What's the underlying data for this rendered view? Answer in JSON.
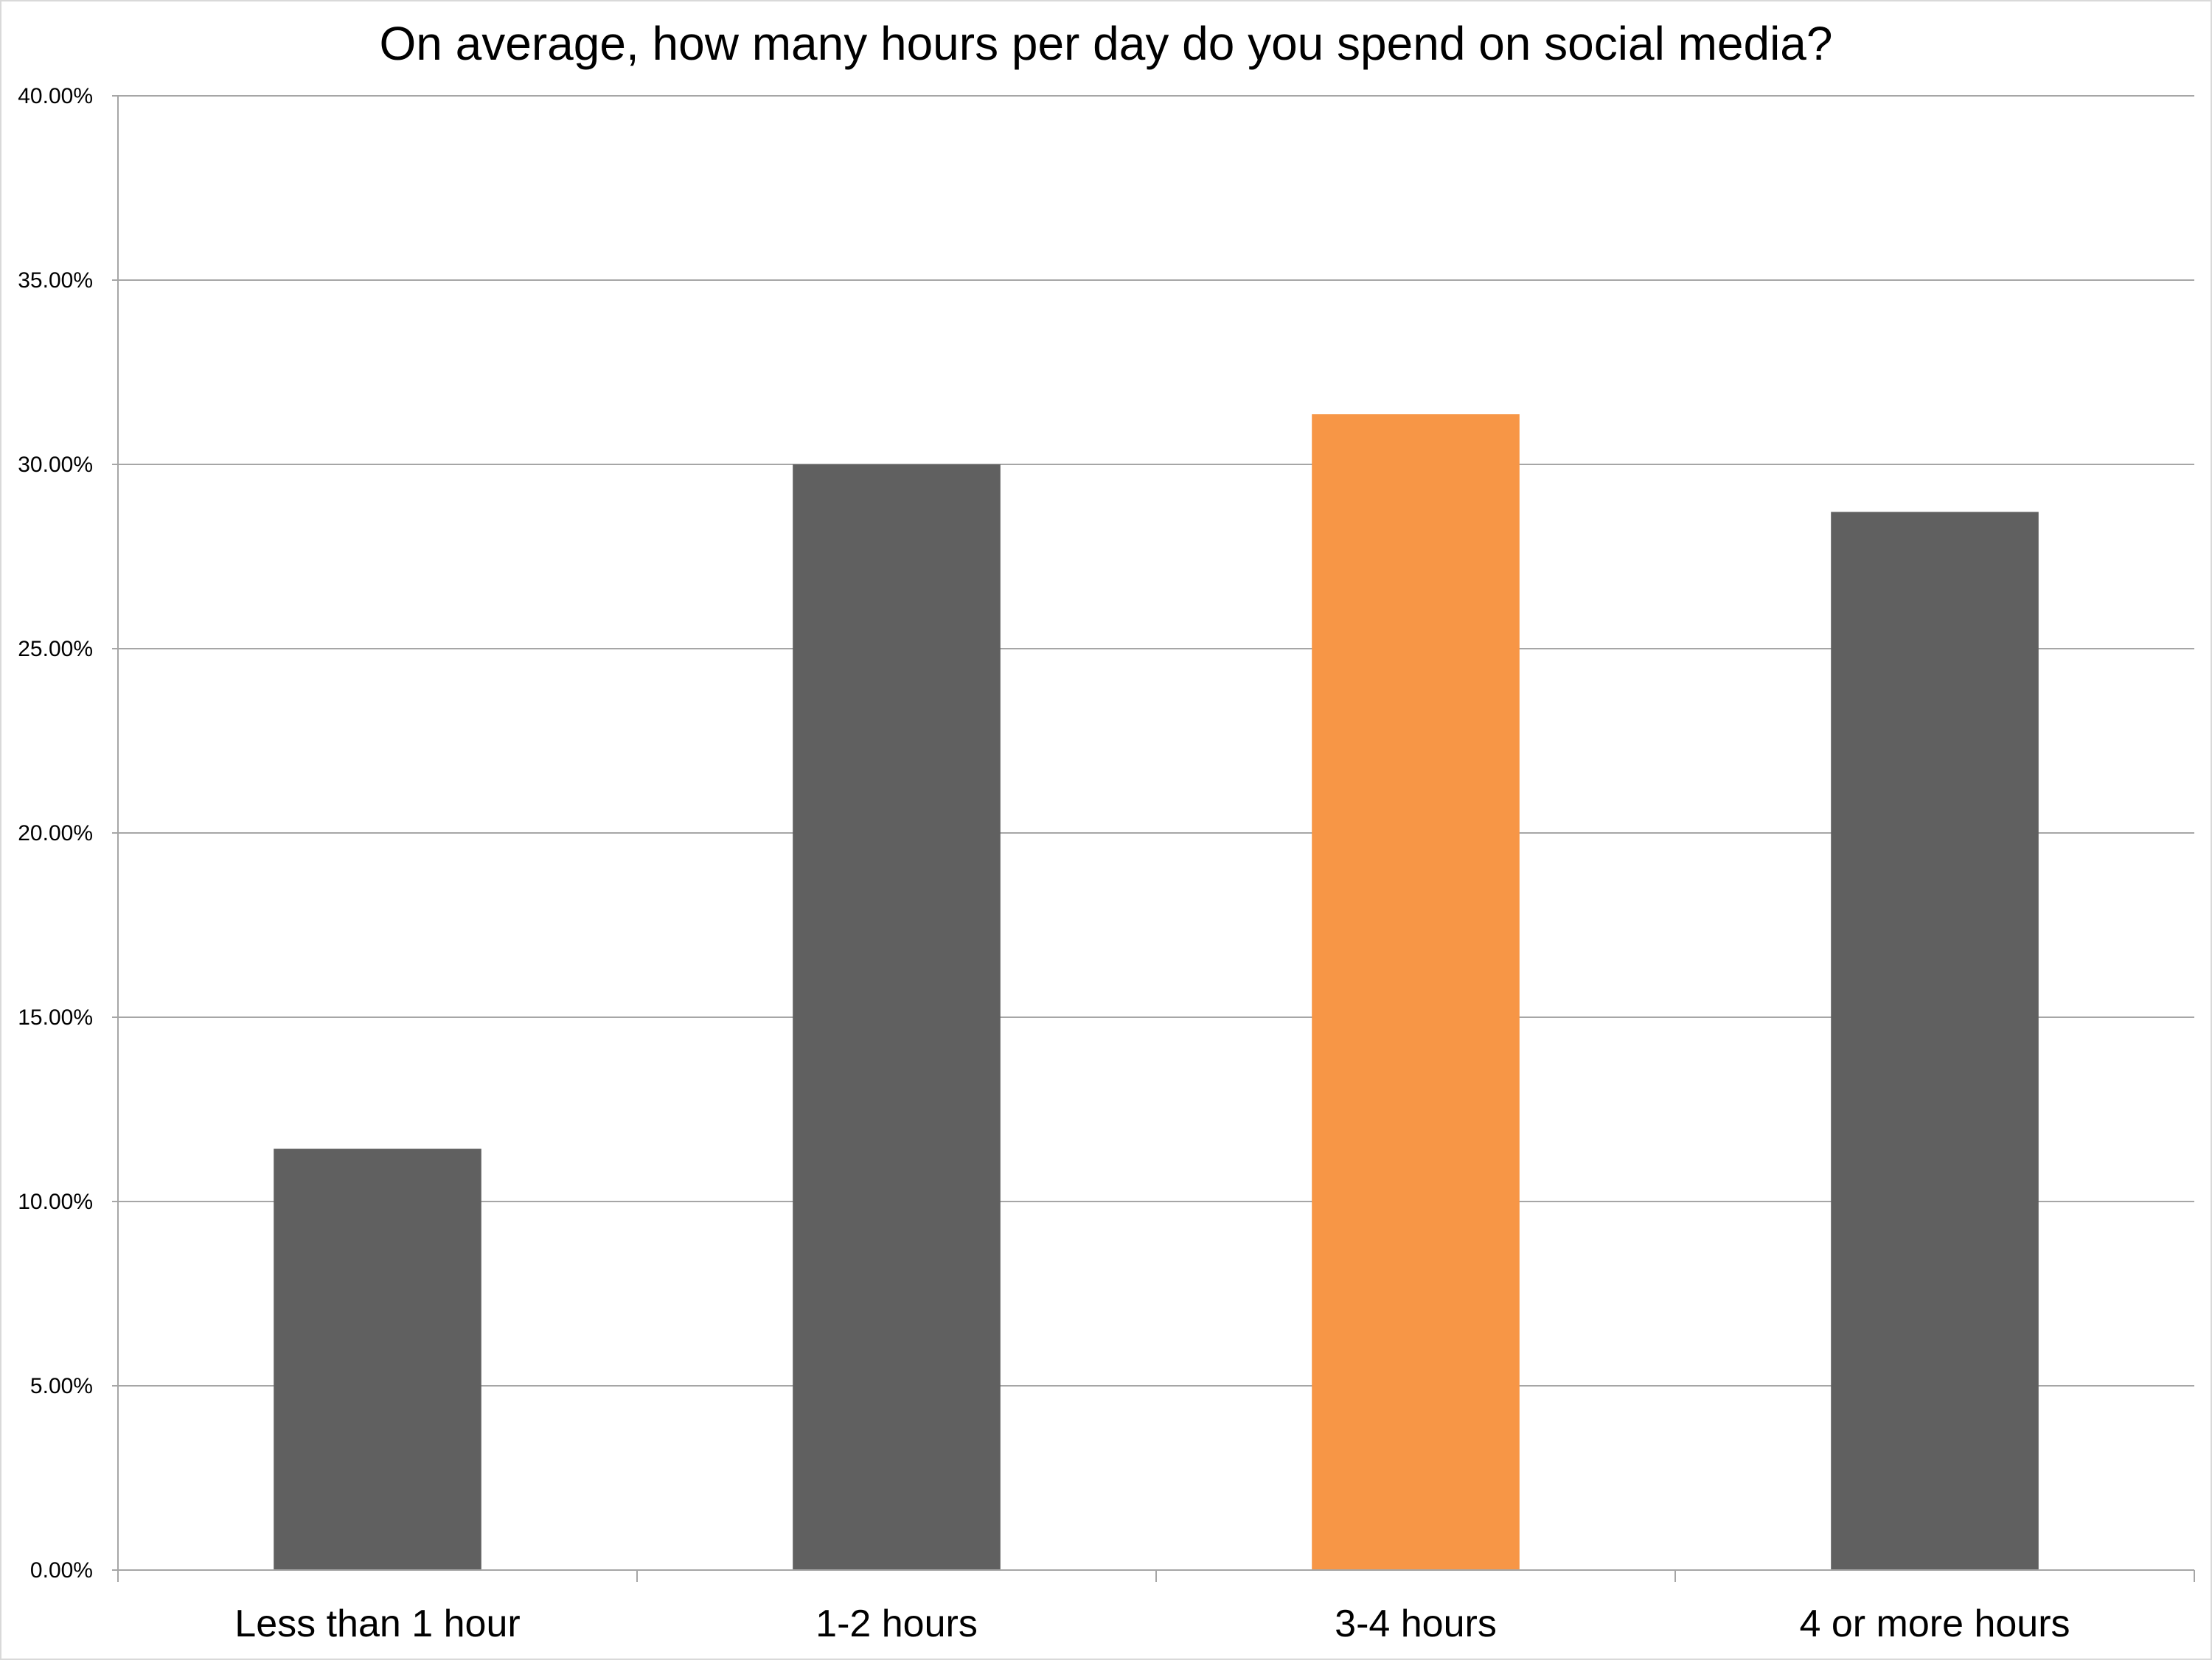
{
  "chart_data": {
    "type": "bar",
    "title": "On average, how many hours per day do you spend on social media?",
    "xlabel": "",
    "ylabel": "",
    "categories": [
      "Less than 1 hour",
      "1-2 hours",
      "3-4 hours",
      "4 or more hours"
    ],
    "values": [
      11.43,
      30.0,
      31.36,
      28.71
    ],
    "ylim": [
      0,
      40
    ],
    "yticks": [
      "0.00%",
      "5.00%",
      "10.00%",
      "15.00%",
      "20.00%",
      "25.00%",
      "30.00%",
      "35.00%",
      "40.00%"
    ],
    "grid": true,
    "legend": "none",
    "colors": {
      "default_bar": "#606060",
      "highlight_bar": "#f79646",
      "gridline": "#a6a6a6",
      "axis": "#a6a6a6"
    },
    "highlight_index": 2
  }
}
